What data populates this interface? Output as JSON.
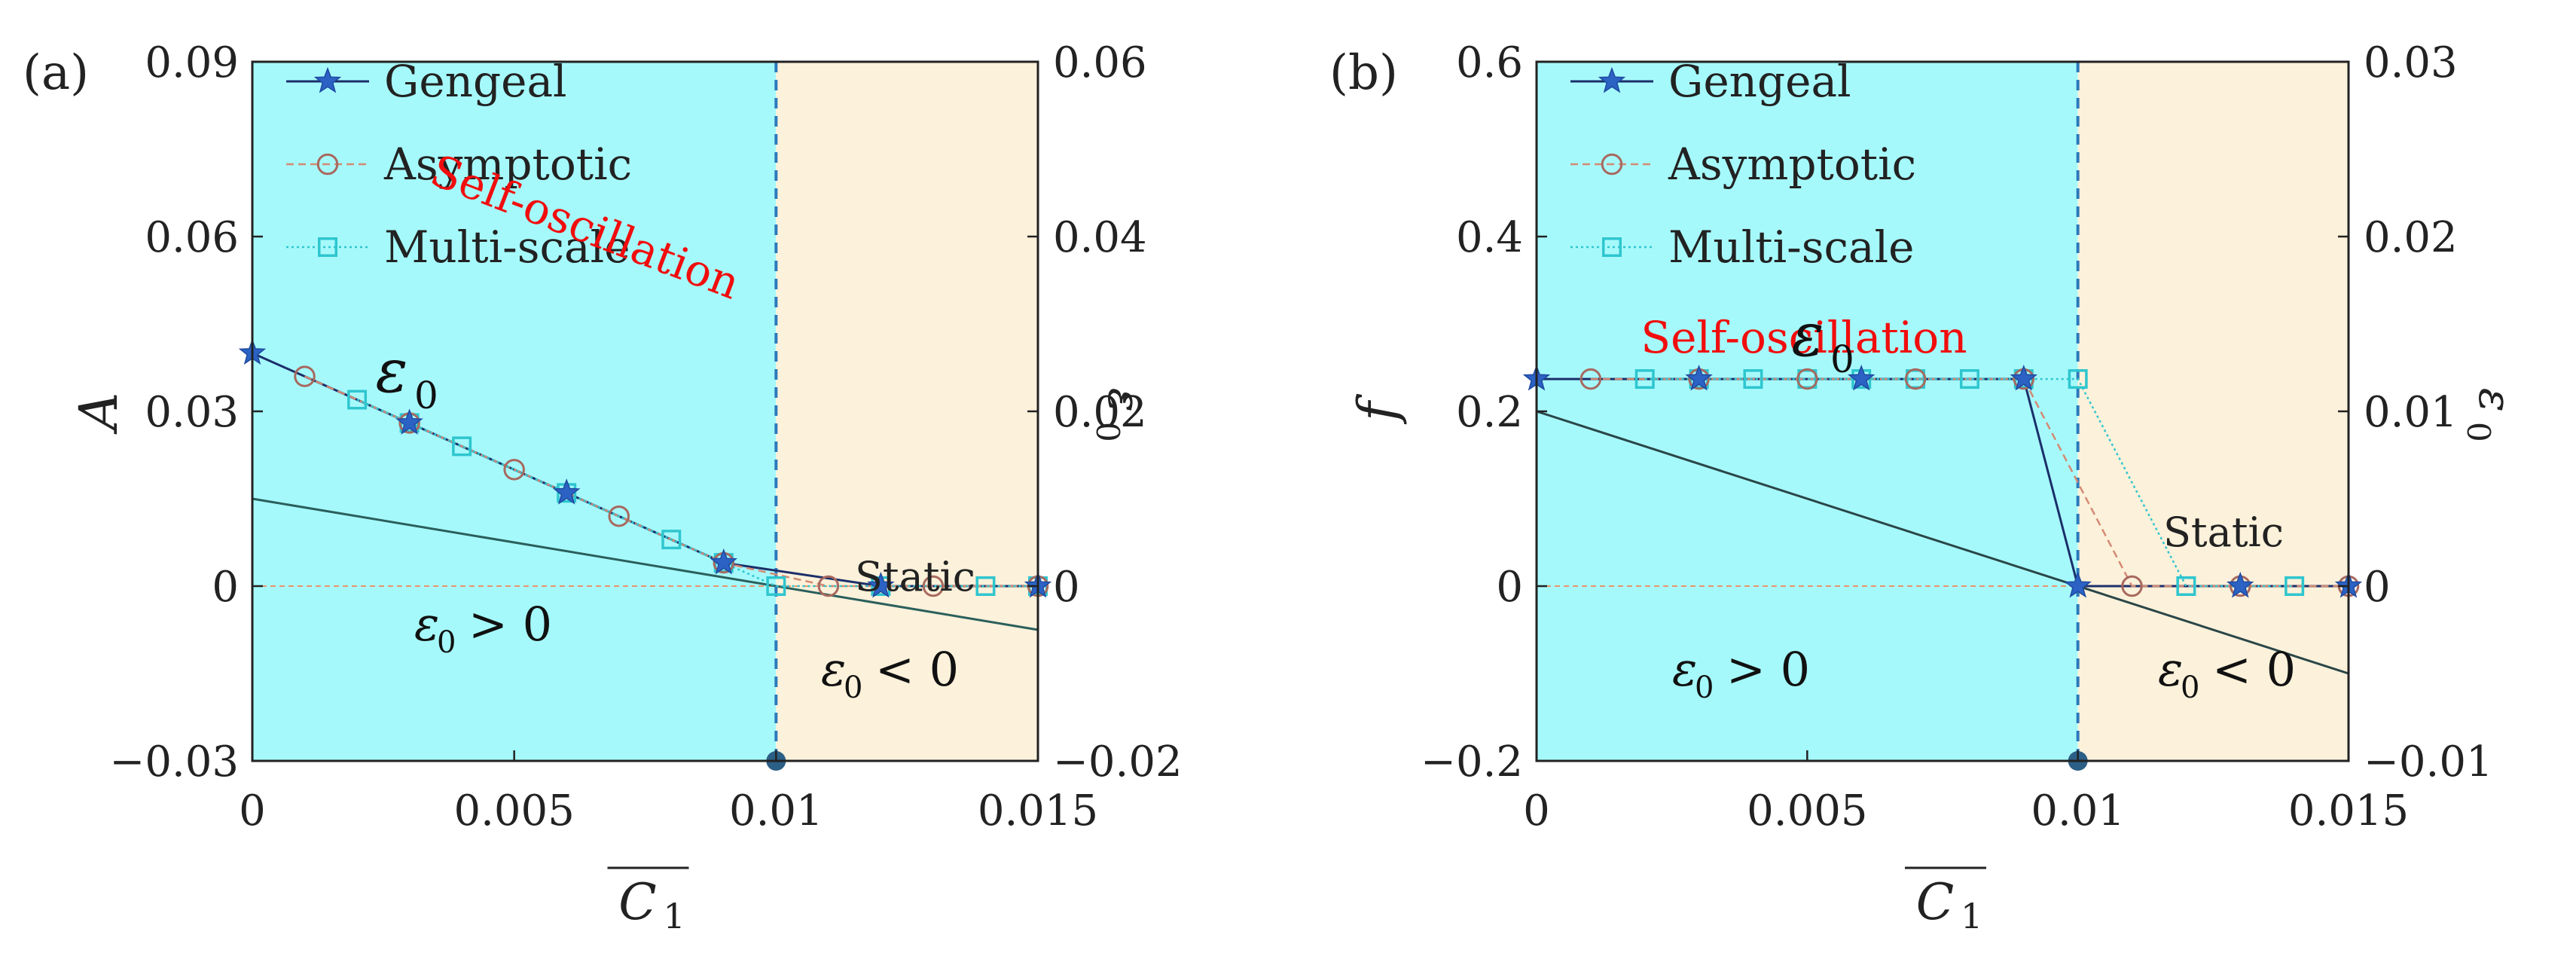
{
  "figure": {
    "panels": [
      "(a)",
      "(b)"
    ]
  },
  "colors": {
    "self_region": "#a6f9fb",
    "static_region": "#fcf1da",
    "star": "#2b62c4",
    "eps_line": "#2a5f5c",
    "eps_line_b": "#2a4648",
    "zero_dash": "#e8956c",
    "divider": "#2b79bb",
    "circle": "#a8695f",
    "square": "#2ec6cf",
    "red_label": "#f10d0d",
    "marker_dot": "#2c5f86"
  },
  "chart_data": [
    {
      "id": "a",
      "type": "line",
      "panel_label": "(a)",
      "xlabel": "C",
      "xlabel_sub": "1",
      "ylabel": "A",
      "ylabel_right": "ε",
      "ylabel_right_sub": "0",
      "xlim": [
        0,
        0.015
      ],
      "ylim": [
        -0.03,
        0.09
      ],
      "ylim_right": [
        -0.02,
        0.06
      ],
      "x_ticks": [
        0,
        0.005,
        0.01,
        0.015
      ],
      "x_tick_labels": [
        "0",
        "0.005",
        "0.01",
        "0.015"
      ],
      "y_ticks": [
        -0.03,
        0,
        0.03,
        0.06,
        0.09
      ],
      "y_tick_labels": [
        "−0.03",
        "0",
        "0.03",
        "0.06",
        "0.09"
      ],
      "y_ticks_right": [
        -0.02,
        0,
        0.02,
        0.04,
        0.06
      ],
      "y_tick_labels_right": [
        "−0.02",
        "0",
        "0.02",
        "0.04",
        "0.06"
      ],
      "regions": [
        {
          "name": "Self-oscillation",
          "x": [
            0,
            0.01
          ]
        },
        {
          "name": "Static",
          "x": [
            0.01,
            0.015
          ]
        }
      ],
      "critical_x": 0.01,
      "series": [
        {
          "name": "Gengeal",
          "marker": "star",
          "x": [
            0,
            0.003,
            0.006,
            0.009,
            0.012,
            0.015
          ],
          "values": [
            0.04,
            0.028,
            0.016,
            0.004,
            0,
            0
          ]
        },
        {
          "name": "Asymptotic",
          "marker": "circle",
          "x": [
            0.001,
            0.003,
            0.005,
            0.007,
            0.009,
            0.011,
            0.013,
            0.015
          ],
          "values": [
            0.036,
            0.028,
            0.02,
            0.012,
            0.004,
            0,
            0,
            0
          ]
        },
        {
          "name": "Multi-scale",
          "marker": "square",
          "x": [
            0.002,
            0.003,
            0.004,
            0.006,
            0.008,
            0.009,
            0.01,
            0.012,
            0.014,
            0.015
          ],
          "values": [
            0.032,
            0.028,
            0.024,
            0.016,
            0.008,
            0.004,
            0,
            0,
            0,
            0
          ]
        }
      ],
      "eps_line": {
        "axis": "right",
        "x": [
          0,
          0.015
        ],
        "values": [
          0.01,
          -0.005
        ]
      },
      "annotations": {
        "self_label": "Self-oscillation",
        "static_label": "Static",
        "eps_symbol": "ε",
        "eps_sub": "0",
        "pos_cond_rel": "> 0",
        "neg_cond_rel": "< 0"
      }
    },
    {
      "id": "b",
      "type": "line",
      "panel_label": "(b)",
      "xlabel": "C",
      "xlabel_sub": "1",
      "ylabel": "f",
      "ylabel_right": "ε",
      "ylabel_right_sub": "0",
      "xlim": [
        0,
        0.015
      ],
      "ylim": [
        -0.2,
        0.6
      ],
      "ylim_right": [
        -0.01,
        0.03
      ],
      "x_ticks": [
        0,
        0.005,
        0.01,
        0.015
      ],
      "x_tick_labels": [
        "0",
        "0.005",
        "0.01",
        "0.015"
      ],
      "y_ticks": [
        -0.2,
        0,
        0.2,
        0.4,
        0.6
      ],
      "y_tick_labels": [
        "−0.2",
        "0",
        "0.2",
        "0.4",
        "0.6"
      ],
      "y_ticks_right": [
        -0.01,
        0,
        0.01,
        0.02,
        0.03
      ],
      "y_tick_labels_right": [
        "−0.01",
        "0",
        "0.01",
        "0.02",
        "0.03"
      ],
      "regions": [
        {
          "name": "Self-oscillation",
          "x": [
            0,
            0.01
          ]
        },
        {
          "name": "Static",
          "x": [
            0.01,
            0.015
          ]
        }
      ],
      "critical_x": 0.01,
      "series": [
        {
          "name": "Gengeal",
          "marker": "star",
          "x": [
            0,
            0.003,
            0.006,
            0.009,
            0.01,
            0.013,
            0.015
          ],
          "values": [
            0.237,
            0.237,
            0.237,
            0.237,
            0,
            0,
            0
          ]
        },
        {
          "name": "Asymptotic",
          "marker": "circle",
          "x": [
            0.001,
            0.003,
            0.005,
            0.007,
            0.009,
            0.011,
            0.013,
            0.015
          ],
          "values": [
            0.237,
            0.237,
            0.237,
            0.237,
            0.237,
            0,
            0,
            0
          ]
        },
        {
          "name": "Multi-scale",
          "marker": "square",
          "x": [
            0.002,
            0.003,
            0.004,
            0.005,
            0.006,
            0.007,
            0.008,
            0.009,
            0.01,
            0.012,
            0.014
          ],
          "values": [
            0.237,
            0.237,
            0.237,
            0.237,
            0.237,
            0.237,
            0.237,
            0.237,
            0.237,
            0,
            0
          ]
        }
      ],
      "eps_line": {
        "axis": "right",
        "x": [
          0,
          0.015
        ],
        "values": [
          0.01,
          -0.005
        ]
      },
      "annotations": {
        "self_label": "Self-oscillation",
        "static_label": "Static",
        "eps_symbol": "ε",
        "eps_sub": "0",
        "pos_cond_rel": "> 0",
        "neg_cond_rel": "< 0"
      }
    }
  ]
}
